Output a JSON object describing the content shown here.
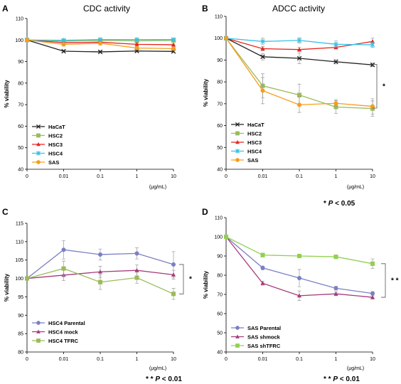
{
  "chart_data": [
    {
      "type": "line",
      "letter": "A",
      "title": "CDC activity",
      "xlabel": "",
      "ylabel": "% viability",
      "x_tick_labels": [
        "0",
        "0.01",
        "0.1",
        "1",
        "10"
      ],
      "x_unit": "(μg/mL)",
      "yticks": [
        40,
        50,
        60,
        70,
        80,
        90,
        100,
        110
      ],
      "ylim": [
        40,
        110
      ],
      "grid": false,
      "legend_position": "bottom-left",
      "series": [
        {
          "name": "HaCaT",
          "values": [
            100,
            94.8,
            94.5,
            94.9,
            94.7
          ],
          "err": [
            0,
            0.6,
            0.5,
            0.5,
            0.5
          ],
          "color": "#222222",
          "marker": "x"
        },
        {
          "name": "HSC2",
          "values": [
            100,
            99.5,
            99.8,
            99.6,
            99.8
          ],
          "err": [
            0,
            0.5,
            0.5,
            0.5,
            0.5
          ],
          "color": "#9bbb59",
          "marker": "square"
        },
        {
          "name": "HSC3",
          "values": [
            100,
            98.8,
            99.0,
            98.0,
            97.8
          ],
          "err": [
            0,
            0.5,
            0.5,
            0.5,
            0.5
          ],
          "color": "#e8231c",
          "marker": "triangle"
        },
        {
          "name": "HSC4",
          "values": [
            100,
            99.9,
            100.2,
            100.2,
            100.2
          ],
          "err": [
            0,
            0.5,
            0.5,
            0.5,
            0.5
          ],
          "color": "#36c1e8",
          "marker": "asterisk"
        },
        {
          "name": "SAS",
          "values": [
            100,
            98.0,
            98.5,
            96.3,
            96.0
          ],
          "err": [
            0,
            0.8,
            0.8,
            0.8,
            0.8
          ],
          "color": "#f79e1b",
          "marker": "circle"
        }
      ],
      "significance": null,
      "footnote": null
    },
    {
      "type": "line",
      "letter": "B",
      "title": "ADCC activity",
      "xlabel": "",
      "ylabel": "% viability",
      "x_tick_labels": [
        "0",
        "0.01",
        "0.1",
        "1",
        "10"
      ],
      "x_unit": "(μg/mL)",
      "yticks": [
        40,
        50,
        60,
        70,
        80,
        90,
        100,
        110
      ],
      "ylim": [
        40,
        110
      ],
      "grid": false,
      "legend_position": "bottom-left",
      "series": [
        {
          "name": "HaCaT",
          "values": [
            100,
            91.5,
            90.8,
            89.2,
            87.8
          ],
          "err": [
            0,
            1.5,
            2.5,
            1.0,
            0.8
          ],
          "color": "#222222",
          "marker": "x"
        },
        {
          "name": "HSC2",
          "values": [
            100,
            78.2,
            74.0,
            68.5,
            67.8
          ],
          "err": [
            0,
            5.5,
            5.0,
            3.0,
            3.5
          ],
          "color": "#9bbb59",
          "marker": "square"
        },
        {
          "name": "HSC3",
          "values": [
            100,
            95.2,
            94.8,
            95.8,
            98.5
          ],
          "err": [
            0,
            1.0,
            1.0,
            0.8,
            1.5
          ],
          "color": "#e8231c",
          "marker": "triangle"
        },
        {
          "name": "HSC4",
          "values": [
            100,
            98.5,
            99.0,
            97.2,
            97.0
          ],
          "err": [
            0,
            1.5,
            1.2,
            1.5,
            1.2
          ],
          "color": "#36c1e8",
          "marker": "asterisk"
        },
        {
          "name": "SAS",
          "values": [
            100,
            76.0,
            69.5,
            70.2,
            68.8
          ],
          "err": [
            0,
            6.0,
            3.5,
            1.5,
            3.5
          ],
          "color": "#f79e1b",
          "marker": "circle"
        }
      ],
      "significance": {
        "label": "*",
        "from": 88,
        "to": 68
      },
      "footnote": {
        "prefix": "* ",
        "p": "P",
        "rest": " < 0.05"
      }
    },
    {
      "type": "line",
      "letter": "C",
      "title": "",
      "xlabel": "",
      "ylabel": "% viability",
      "x_tick_labels": [
        "0",
        "0.01",
        "0.1",
        "1",
        "10"
      ],
      "x_unit": "(μg/mL)",
      "yticks": [
        80,
        85,
        90,
        95,
        100,
        105,
        110,
        115
      ],
      "ylim": [
        80,
        115
      ],
      "grid": false,
      "legend_position": "bottom-left",
      "series": [
        {
          "name": "HSC4 Parental",
          "values": [
            100,
            107.8,
            106.5,
            106.8,
            103.8
          ],
          "err": [
            0,
            2.5,
            1.5,
            1.5,
            3.5
          ],
          "color": "#7b7fc4",
          "marker": "circle"
        },
        {
          "name": "HSC4 mock",
          "values": [
            100,
            100.9,
            101.8,
            102.2,
            101.0
          ],
          "err": [
            0,
            1.5,
            1.5,
            1.5,
            1.2
          ],
          "color": "#a53b7b",
          "marker": "triangle"
        },
        {
          "name": "HSC4 TFRC",
          "values": [
            100,
            102.7,
            99.0,
            100.2,
            95.8
          ],
          "err": [
            0,
            2.0,
            2.0,
            1.5,
            1.5
          ],
          "color": "#9bbb59",
          "marker": "square"
        }
      ],
      "significance": {
        "label": "*",
        "from": 103.8,
        "to": 95.8
      },
      "footnote": {
        "prefix": "* * ",
        "p": "P",
        "rest": " < 0.01"
      }
    },
    {
      "type": "line",
      "letter": "D",
      "title": "",
      "xlabel": "",
      "ylabel": "% viability",
      "x_tick_labels": [
        "0",
        "0.01",
        "0.1",
        "1",
        "10"
      ],
      "x_unit": "(μg/mL)",
      "yticks": [
        40,
        50,
        60,
        70,
        80,
        90,
        100,
        110
      ],
      "ylim": [
        40,
        110
      ],
      "grid": false,
      "legend_position": "bottom-left",
      "series": [
        {
          "name": "SAS Parental",
          "values": [
            100,
            83.8,
            78.5,
            73.2,
            70.5
          ],
          "err": [
            0,
            1.0,
            4.5,
            1.0,
            1.0
          ],
          "color": "#7b7fc4",
          "marker": "circle"
        },
        {
          "name": "SAS shmock",
          "values": [
            100,
            75.8,
            69.3,
            70.3,
            68.5
          ],
          "err": [
            0,
            1.0,
            2.5,
            1.0,
            1.0
          ],
          "color": "#a53b7b",
          "marker": "triangle"
        },
        {
          "name": "SAS shTFRC",
          "values": [
            100,
            90.5,
            90.0,
            89.6,
            86.0
          ],
          "err": [
            0,
            1.0,
            1.0,
            1.0,
            2.5
          ],
          "color": "#92d050",
          "marker": "square"
        }
      ],
      "significance": {
        "label": "* *",
        "from": 86,
        "to": 68.5
      },
      "footnote": {
        "prefix": "* * ",
        "p": "P",
        "rest": " < 0.01"
      }
    }
  ]
}
